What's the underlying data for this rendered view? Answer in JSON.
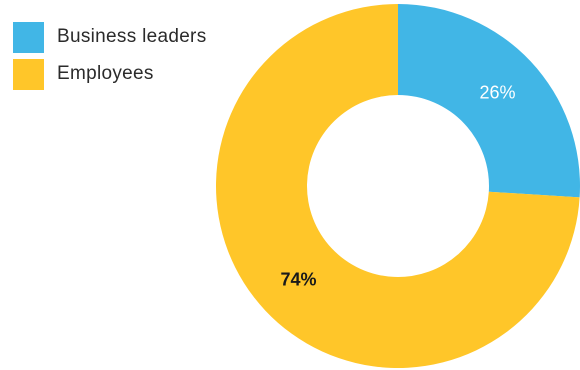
{
  "chart_data": {
    "type": "pie",
    "variant": "donut",
    "title": "",
    "legend_position": "top-left",
    "series": [
      {
        "name": "Business leaders",
        "value": 26,
        "label": "26%",
        "color": "#41B6E6",
        "label_color": "#ffffff"
      },
      {
        "name": "Employees",
        "value": 74,
        "label": "74%",
        "color": "#FFC629",
        "label_color": "#1a1a1a"
      }
    ]
  }
}
